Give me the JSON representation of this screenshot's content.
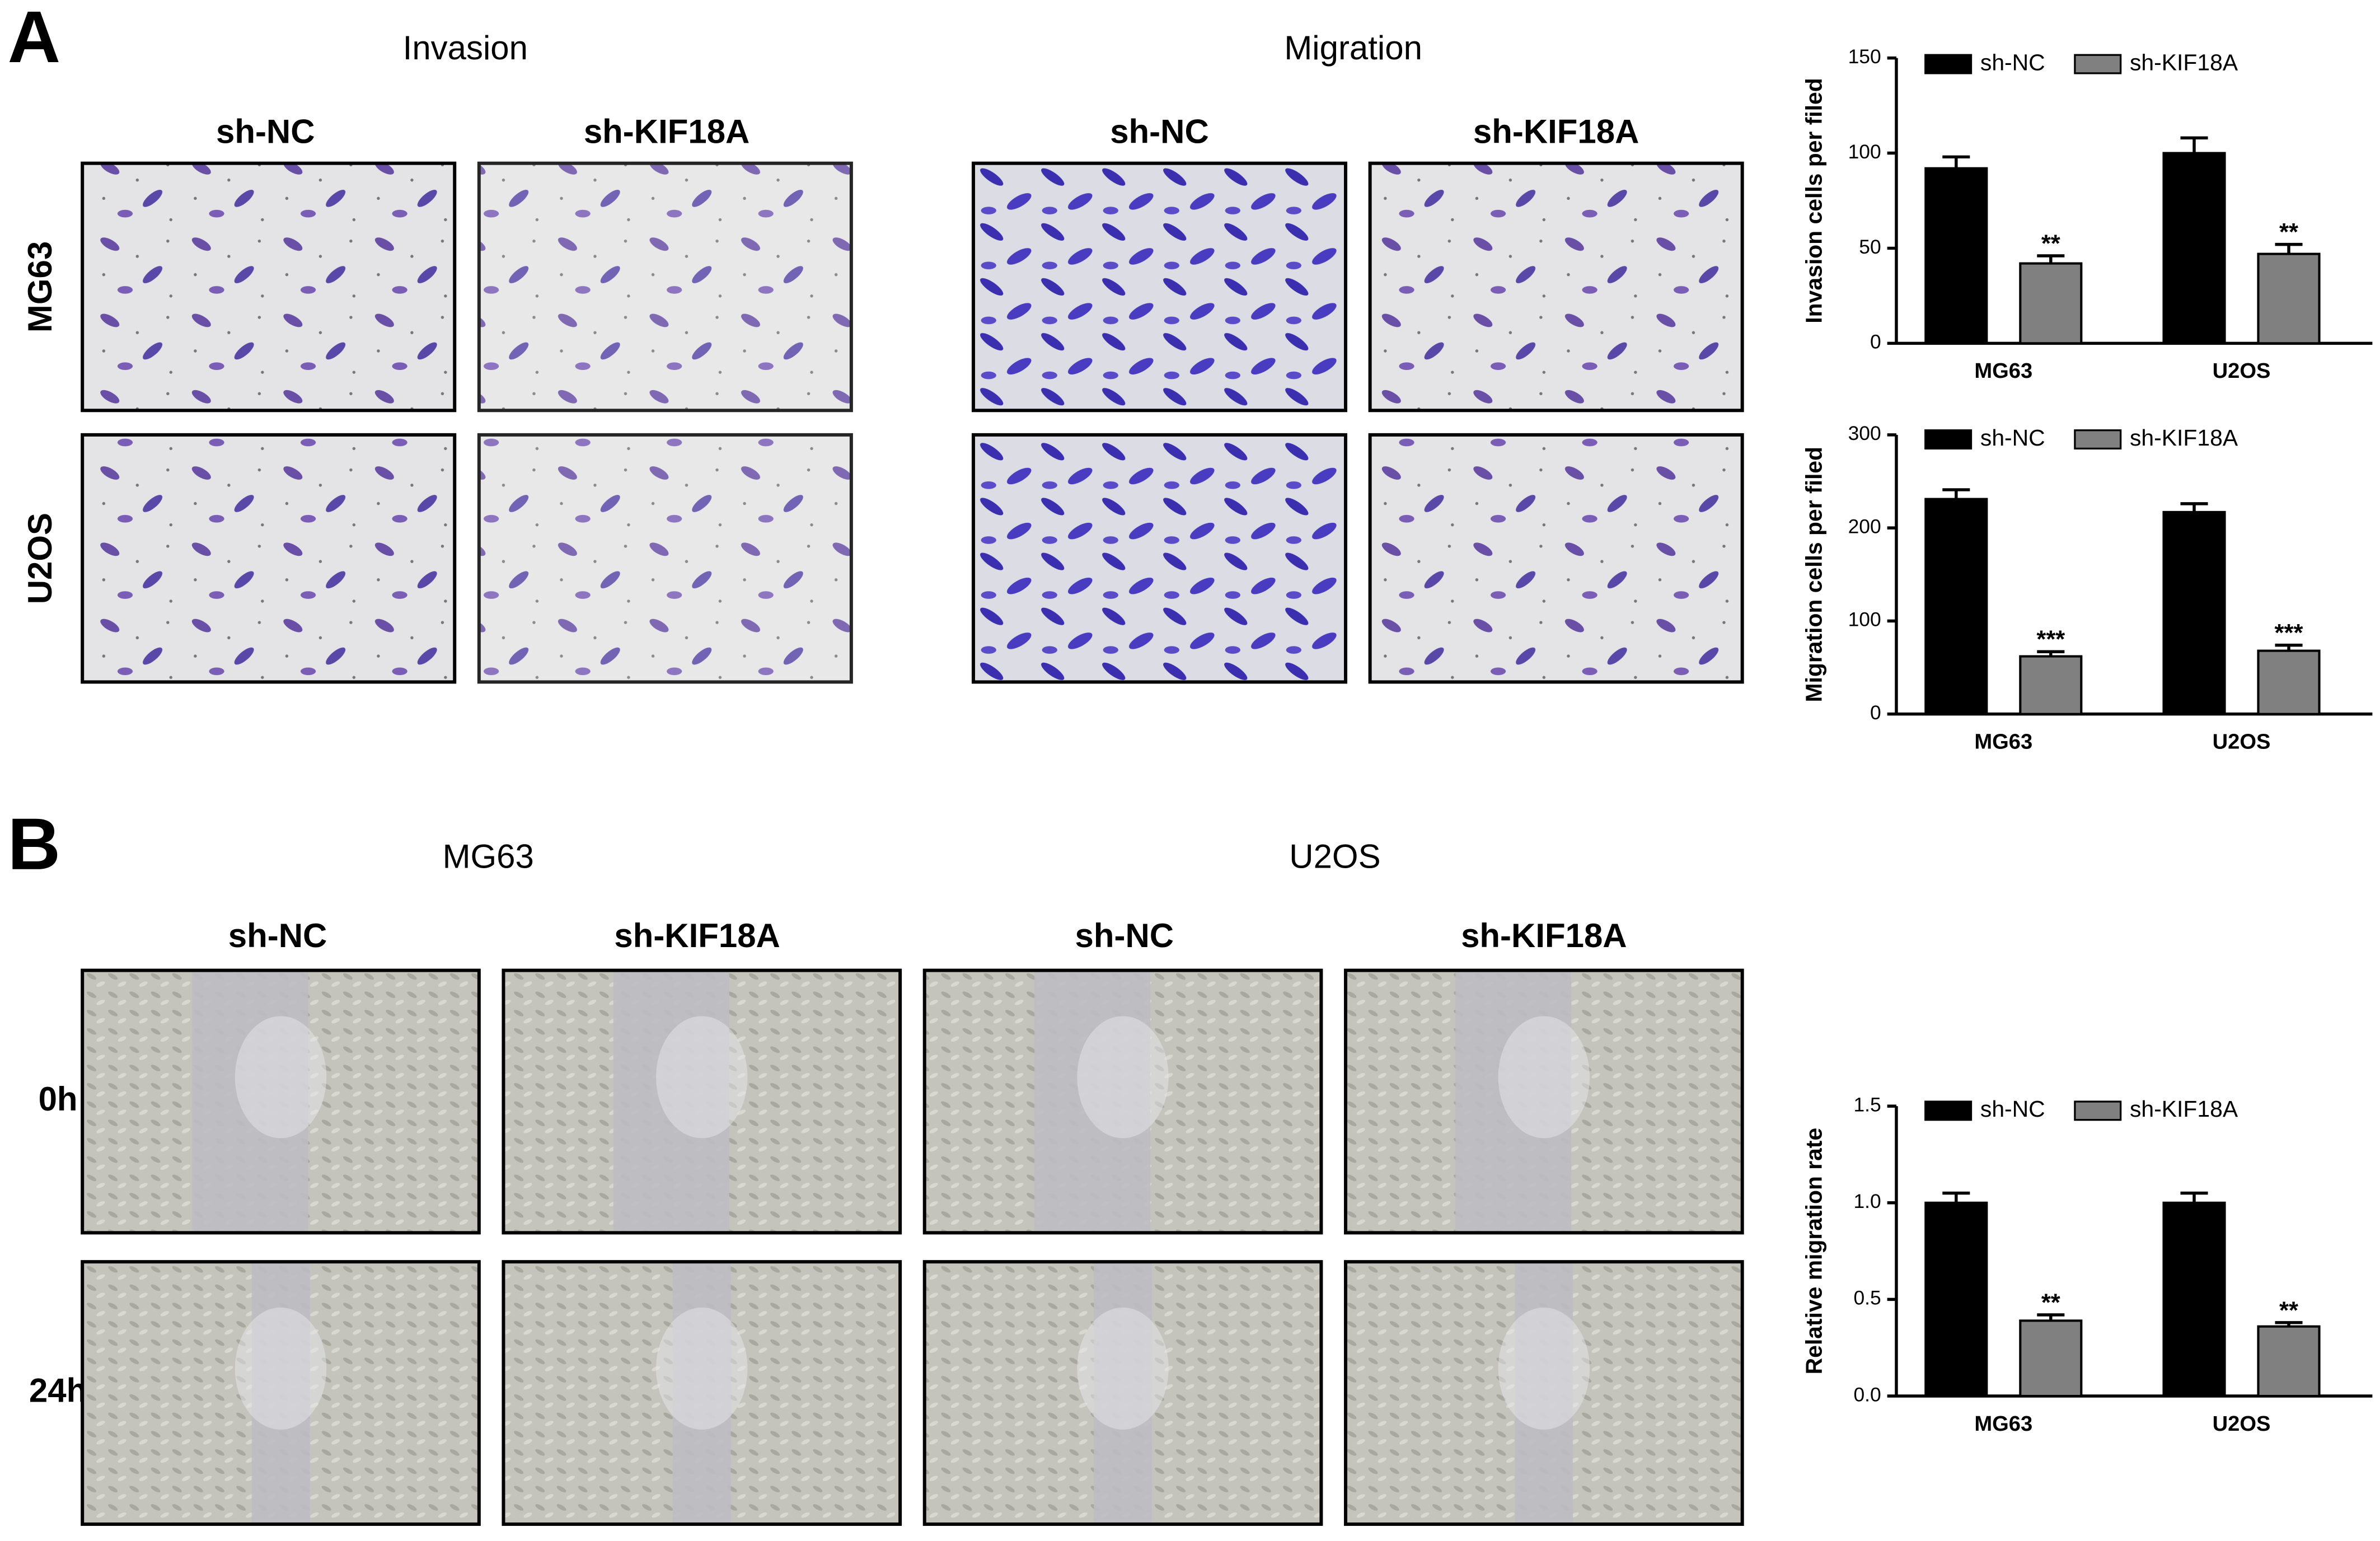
{
  "panel_a": {
    "label": "A",
    "invasion": {
      "title": "Invasion",
      "columns": [
        "sh-NC",
        "sh-KIF18A"
      ]
    },
    "migration": {
      "title": "Migration",
      "columns": [
        "sh-NC",
        "sh-KIF18A"
      ]
    },
    "rows": [
      "MG63",
      "U2OS"
    ]
  },
  "panel_b": {
    "label": "B",
    "groups": [
      {
        "title": "MG63",
        "columns": [
          "sh-NC",
          "sh-KIF18A"
        ]
      },
      {
        "title": "U2OS",
        "columns": [
          "sh-NC",
          "sh-KIF18A"
        ]
      }
    ],
    "rows": [
      "0h",
      "24h"
    ]
  },
  "chart_data": [
    {
      "type": "bar",
      "y_label": "Invasion cells per filed",
      "categories": [
        "MG63",
        "U2OS"
      ],
      "series": [
        {
          "name": "sh-NC",
          "color": "#000000",
          "values": [
            92,
            100
          ],
          "errors": [
            6,
            8
          ]
        },
        {
          "name": "sh-KIF18A",
          "color": "#808080",
          "values": [
            42,
            47
          ],
          "errors": [
            4,
            5
          ],
          "significance": [
            "**",
            "**"
          ]
        }
      ],
      "ylim": [
        0,
        150
      ],
      "yticks": [
        0,
        50,
        100,
        150
      ]
    },
    {
      "type": "bar",
      "y_label": "Migration cells per filed",
      "categories": [
        "MG63",
        "U2OS"
      ],
      "series": [
        {
          "name": "sh-NC",
          "color": "#000000",
          "values": [
            231,
            217
          ],
          "errors": [
            10,
            9
          ]
        },
        {
          "name": "sh-KIF18A",
          "color": "#808080",
          "values": [
            62,
            68
          ],
          "errors": [
            5,
            6
          ],
          "significance": [
            "***",
            "***"
          ]
        }
      ],
      "ylim": [
        0,
        300
      ],
      "yticks": [
        0,
        100,
        200,
        300
      ]
    },
    {
      "type": "bar",
      "y_label": "Relative migration rate",
      "categories": [
        "MG63",
        "U2OS"
      ],
      "series": [
        {
          "name": "sh-NC",
          "color": "#000000",
          "values": [
            1.0,
            1.0
          ],
          "errors": [
            0.05,
            0.05
          ]
        },
        {
          "name": "sh-KIF18A",
          "color": "#808080",
          "values": [
            0.39,
            0.36
          ],
          "errors": [
            0.03,
            0.02
          ],
          "significance": [
            "**",
            "**"
          ]
        }
      ],
      "ylim": [
        0,
        1.5
      ],
      "yticks": [
        {
          "value": 0,
          "label": "0.0"
        },
        0.5,
        {
          "value": 1,
          "label": "1.0"
        },
        1.5
      ]
    }
  ]
}
